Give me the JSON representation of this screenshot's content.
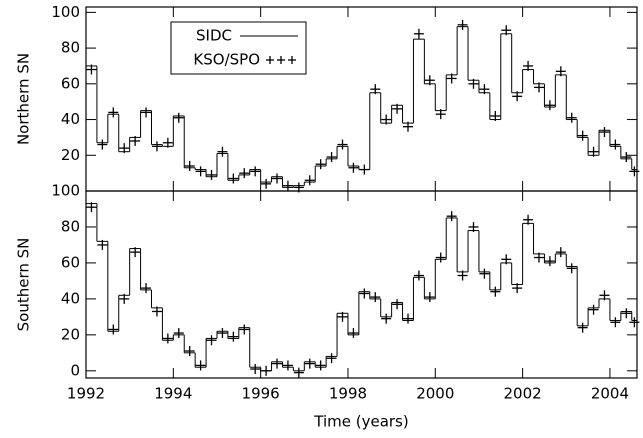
{
  "chart_data": [
    {
      "type": "step",
      "ylabel": "Northern SN",
      "x": [
        1992.0,
        1992.25,
        1992.5,
        1992.75,
        1993.0,
        1993.25,
        1993.5,
        1993.75,
        1994.0,
        1994.25,
        1994.5,
        1994.75,
        1995.0,
        1995.25,
        1995.5,
        1995.75,
        1996.0,
        1996.25,
        1996.5,
        1996.75,
        1997.0,
        1997.25,
        1997.5,
        1997.75,
        1998.0,
        1998.25,
        1998.5,
        1998.75,
        1999.0,
        1999.25,
        1999.5,
        1999.75,
        2000.0,
        2000.25,
        2000.5,
        2000.75,
        2001.0,
        2001.25,
        2001.5,
        2001.75,
        2002.0,
        2002.25,
        2002.5,
        2002.75,
        2003.0,
        2003.25,
        2003.5,
        2003.75,
        2004.0,
        2004.25,
        2004.5
      ],
      "series": [
        {
          "name": "SIDC",
          "color": "#000000",
          "values": [
            70,
            27,
            43,
            22,
            30,
            45,
            26,
            25,
            42,
            13,
            12,
            8,
            21,
            6,
            9,
            12,
            5,
            8,
            2,
            3,
            5,
            14,
            18,
            25,
            14,
            12,
            55,
            38,
            48,
            38,
            85,
            60,
            45,
            65,
            92,
            62,
            55,
            40,
            88,
            55,
            68,
            60,
            47,
            65,
            40,
            30,
            20,
            34,
            25,
            18,
            12
          ]
        },
        {
          "name": "KSO/SPO",
          "color": "#000000",
          "values": [
            68,
            26,
            44,
            24,
            28,
            44,
            25,
            27,
            41,
            14,
            11,
            9,
            22,
            7,
            10,
            11,
            4,
            7,
            3,
            2,
            6,
            15,
            19,
            26,
            13,
            12,
            57,
            40,
            46,
            36,
            88,
            62,
            43,
            63,
            93,
            60,
            57,
            42,
            90,
            53,
            70,
            58,
            48,
            67,
            41,
            31,
            22,
            33,
            26,
            19,
            11
          ]
        }
      ],
      "xlim": [
        1992,
        2004.62
      ],
      "xticks": [
        1992,
        1994,
        1996,
        1998,
        2000,
        2002,
        2004
      ],
      "ylim": [
        0,
        103
      ],
      "yticks": [
        20,
        40,
        60,
        80,
        100
      ],
      "legend": "upper-left"
    },
    {
      "type": "step",
      "ylabel": "Southern SN",
      "xlabel": "Time (years)",
      "x": [
        1992.0,
        1992.25,
        1992.5,
        1992.75,
        1993.0,
        1993.25,
        1993.5,
        1993.75,
        1994.0,
        1994.25,
        1994.5,
        1994.75,
        1995.0,
        1995.25,
        1995.5,
        1995.75,
        1996.0,
        1996.25,
        1996.5,
        1996.75,
        1997.0,
        1997.25,
        1997.5,
        1997.75,
        1998.0,
        1998.25,
        1998.5,
        1998.75,
        1999.0,
        1999.25,
        1999.5,
        1999.75,
        2000.0,
        2000.25,
        2000.5,
        2000.75,
        2001.0,
        2001.25,
        2001.5,
        2001.75,
        2002.0,
        2002.25,
        2002.5,
        2002.75,
        2003.0,
        2003.25,
        2003.5,
        2003.75,
        2004.0,
        2004.25,
        2004.5
      ],
      "series": [
        {
          "name": "SIDC",
          "color": "#000000",
          "values": [
            93,
            72,
            22,
            42,
            68,
            45,
            35,
            17,
            20,
            10,
            2,
            18,
            22,
            18,
            24,
            2,
            0,
            5,
            2,
            0,
            5,
            2,
            8,
            32,
            20,
            44,
            40,
            30,
            38,
            28,
            52,
            40,
            62,
            85,
            55,
            78,
            55,
            45,
            60,
            48,
            82,
            65,
            60,
            65,
            58,
            25,
            35,
            40,
            28,
            33,
            28
          ]
        },
        {
          "name": "KSO/SPO",
          "color": "#000000",
          "values": [
            91,
            70,
            23,
            40,
            66,
            46,
            33,
            18,
            21,
            11,
            3,
            17,
            21,
            19,
            23,
            1,
            0,
            4,
            3,
            -1,
            4,
            3,
            7,
            30,
            21,
            43,
            41,
            29,
            37,
            29,
            53,
            41,
            63,
            86,
            53,
            80,
            54,
            44,
            62,
            46,
            84,
            63,
            61,
            66,
            57,
            24,
            34,
            42,
            27,
            32,
            27
          ]
        }
      ],
      "xlim": [
        1992,
        2004.62
      ],
      "xticks": [
        1992,
        1994,
        1996,
        1998,
        2000,
        2002,
        2004
      ],
      "ylim": [
        -4,
        100
      ],
      "yticks": [
        0,
        20,
        40,
        60,
        80,
        100
      ]
    }
  ]
}
